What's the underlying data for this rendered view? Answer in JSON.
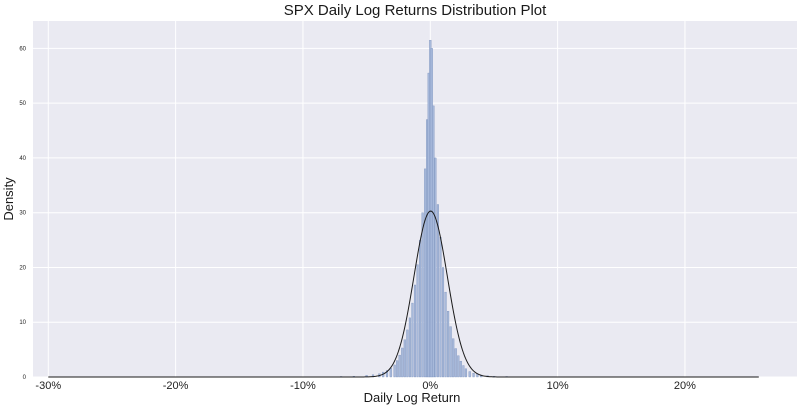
{
  "chart_data": {
    "type": "histogram",
    "title": "SPX Daily Log Returns Distribution Plot",
    "xlabel": "Daily Log Return",
    "ylabel": "Density",
    "xlim": [
      -0.312,
      0.288
    ],
    "ylim": [
      0,
      65
    ],
    "x_ticks": [
      -0.3,
      -0.2,
      -0.1,
      0.0,
      0.1,
      0.2
    ],
    "x_tick_labels": [
      "-30%",
      "-20%",
      "-10%",
      "0%",
      "10%",
      "20%"
    ],
    "y_ticks": [
      0,
      10,
      20,
      30,
      40,
      50,
      60
    ],
    "y_tick_labels": [
      "0",
      "10",
      "20",
      "30",
      "40",
      "50",
      "60"
    ],
    "grid": true,
    "colors": {
      "background": "#EAEAF2",
      "grid": "#FFFFFF",
      "bar_fill": "#A7B9DA",
      "bar_edge": "#6F86B5",
      "curve": "#1A1A1A"
    },
    "series": [
      {
        "type": "histogram",
        "bins": [
          [
            -0.23,
            0.02
          ],
          [
            -0.09,
            0.06
          ],
          [
            -0.07,
            0.1
          ],
          [
            -0.06,
            0.15
          ],
          [
            -0.05,
            0.3
          ],
          [
            -0.045,
            0.4
          ],
          [
            -0.04,
            0.6
          ],
          [
            -0.037,
            0.9
          ],
          [
            -0.034,
            1.2
          ],
          [
            -0.031,
            1.6
          ],
          [
            -0.028,
            2.2
          ],
          [
            -0.026,
            3.0
          ],
          [
            -0.024,
            4.0
          ],
          [
            -0.022,
            5.3
          ],
          [
            -0.02,
            6.8
          ],
          [
            -0.018,
            8.6
          ],
          [
            -0.016,
            10.8
          ],
          [
            -0.014,
            13.5
          ],
          [
            -0.012,
            16.8
          ],
          [
            -0.01,
            20.5
          ],
          [
            -0.008,
            25.0
          ],
          [
            -0.006,
            30.0
          ],
          [
            -0.004,
            38.0
          ],
          [
            -0.0025,
            47.0
          ],
          [
            -0.0012,
            55.5
          ],
          [
            0.0,
            61.5
          ],
          [
            0.0012,
            60.0
          ],
          [
            0.0025,
            49.5
          ],
          [
            0.004,
            40.0
          ],
          [
            0.006,
            31.5
          ],
          [
            0.008,
            25.5
          ],
          [
            0.01,
            20.0
          ],
          [
            0.012,
            15.5
          ],
          [
            0.014,
            12.0
          ],
          [
            0.016,
            9.2
          ],
          [
            0.018,
            7.0
          ],
          [
            0.02,
            5.2
          ],
          [
            0.022,
            3.9
          ],
          [
            0.024,
            2.9
          ],
          [
            0.026,
            2.1
          ],
          [
            0.028,
            1.5
          ],
          [
            0.031,
            1.0
          ],
          [
            0.034,
            0.7
          ],
          [
            0.037,
            0.5
          ],
          [
            0.04,
            0.35
          ],
          [
            0.045,
            0.25
          ],
          [
            0.05,
            0.15
          ],
          [
            0.06,
            0.1
          ],
          [
            0.07,
            0.06
          ],
          [
            0.09,
            0.04
          ],
          [
            0.11,
            0.02
          ]
        ],
        "bin_width": 0.0014
      },
      {
        "type": "line",
        "distribution": "normal",
        "mean": 0.0003,
        "std": 0.0131,
        "peak_density": 30.3,
        "x_range": [
          -0.3,
          0.258
        ]
      }
    ]
  }
}
